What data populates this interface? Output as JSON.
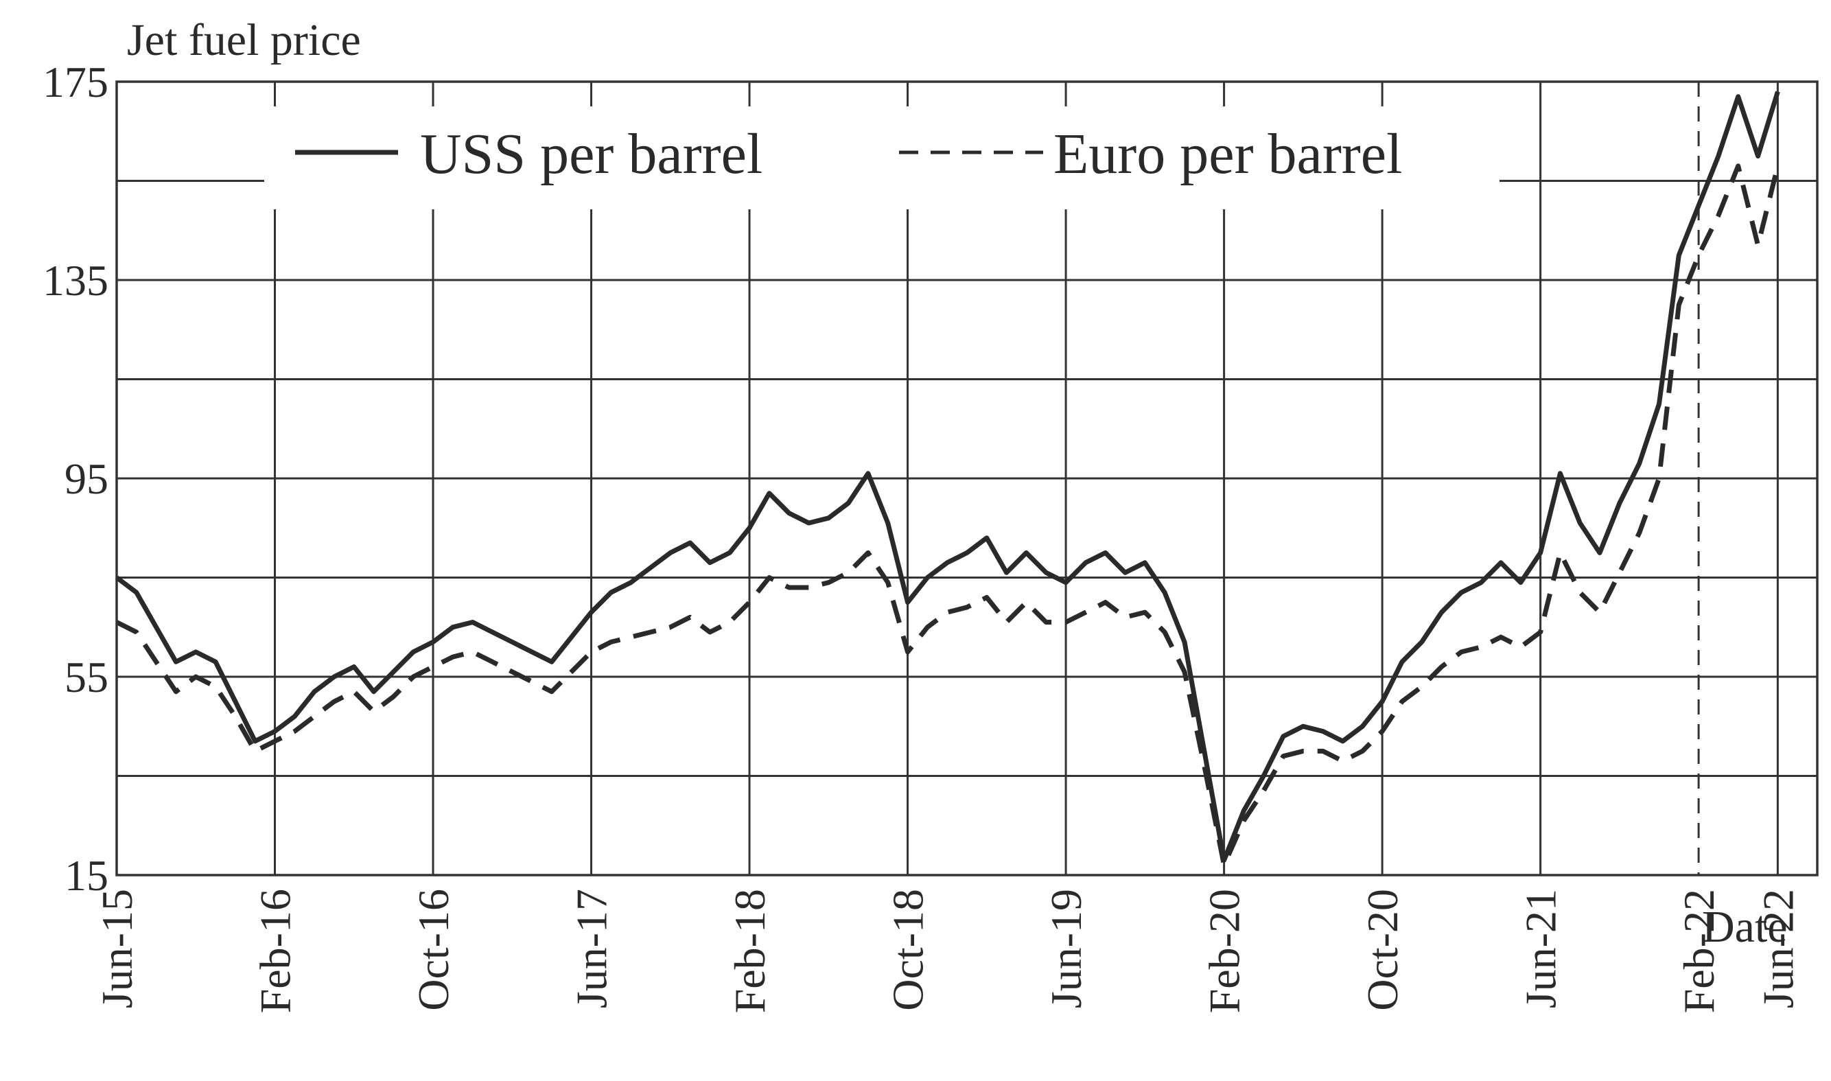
{
  "chart_data": {
    "type": "line",
    "title": "",
    "ylabel": "Jet fuel price",
    "xlabel": "Date",
    "ylim": [
      15,
      175
    ],
    "xlim": [
      "2015-06",
      "2022-08"
    ],
    "y_ticks": [
      15,
      55,
      95,
      135,
      175
    ],
    "y_gridlines": [
      15,
      35,
      55,
      75,
      95,
      115,
      135,
      155,
      175
    ],
    "x_ticks": [
      {
        "date": "2015-06",
        "label": "Jun-15"
      },
      {
        "date": "2016-02",
        "label": "Feb-16"
      },
      {
        "date": "2016-10",
        "label": "Oct-16"
      },
      {
        "date": "2017-06",
        "label": "Jun-17"
      },
      {
        "date": "2018-02",
        "label": "Feb-18"
      },
      {
        "date": "2018-10",
        "label": "Oct-18"
      },
      {
        "date": "2019-06",
        "label": "Jun-19"
      },
      {
        "date": "2020-02",
        "label": "Feb-20"
      },
      {
        "date": "2020-10",
        "label": "Oct-20"
      },
      {
        "date": "2021-06",
        "label": "Jun-21"
      },
      {
        "date": "2022-02",
        "label": "Feb-22"
      },
      {
        "date": "2022-06",
        "label": "Jun-22"
      }
    ],
    "grid": true,
    "legend_position": "top",
    "vertical_marker": {
      "date": "2022-02",
      "style": "dashed"
    },
    "series": [
      {
        "name": "USS per barrel",
        "style": "solid",
        "x": [
          "2015-06",
          "2015-07",
          "2015-08",
          "2015-09",
          "2015-10",
          "2015-11",
          "2015-12",
          "2016-01",
          "2016-02",
          "2016-03",
          "2016-04",
          "2016-05",
          "2016-06",
          "2016-07",
          "2016-08",
          "2016-09",
          "2016-10",
          "2016-11",
          "2016-12",
          "2017-01",
          "2017-02",
          "2017-03",
          "2017-04",
          "2017-05",
          "2017-06",
          "2017-07",
          "2017-08",
          "2017-09",
          "2017-10",
          "2017-11",
          "2017-12",
          "2018-01",
          "2018-02",
          "2018-03",
          "2018-04",
          "2018-05",
          "2018-06",
          "2018-07",
          "2018-08",
          "2018-09",
          "2018-10",
          "2018-11",
          "2018-12",
          "2019-01",
          "2019-02",
          "2019-03",
          "2019-04",
          "2019-05",
          "2019-06",
          "2019-07",
          "2019-08",
          "2019-09",
          "2019-10",
          "2019-11",
          "2019-12",
          "2020-01",
          "2020-02",
          "2020-03",
          "2020-04",
          "2020-05",
          "2020-06",
          "2020-07",
          "2020-08",
          "2020-09",
          "2020-10",
          "2020-11",
          "2020-12",
          "2021-01",
          "2021-02",
          "2021-03",
          "2021-04",
          "2021-05",
          "2021-06",
          "2021-07",
          "2021-08",
          "2021-09",
          "2021-10",
          "2021-11",
          "2021-12",
          "2022-01",
          "2022-02",
          "2022-03",
          "2022-04",
          "2022-05",
          "2022-06"
        ],
        "values": [
          75,
          72,
          65,
          58,
          60,
          58,
          50,
          42,
          44,
          47,
          52,
          55,
          57,
          52,
          56,
          60,
          62,
          65,
          66,
          64,
          62,
          60,
          58,
          63,
          68,
          72,
          74,
          77,
          80,
          82,
          78,
          80,
          85,
          92,
          88,
          86,
          87,
          90,
          96,
          86,
          70,
          75,
          78,
          80,
          83,
          76,
          80,
          76,
          74,
          78,
          80,
          76,
          78,
          72,
          62,
          40,
          18,
          28,
          35,
          43,
          45,
          44,
          42,
          45,
          50,
          58,
          62,
          68,
          72,
          74,
          78,
          74,
          80,
          96,
          86,
          80,
          90,
          98,
          110,
          140,
          150,
          160,
          172,
          160,
          173
        ],
        "_ignore": ""
      },
      {
        "name": "Euro per barrel",
        "style": "dashed",
        "x": [
          "2015-06",
          "2015-07",
          "2015-08",
          "2015-09",
          "2015-10",
          "2015-11",
          "2015-12",
          "2016-01",
          "2016-02",
          "2016-03",
          "2016-04",
          "2016-05",
          "2016-06",
          "2016-07",
          "2016-08",
          "2016-09",
          "2016-10",
          "2016-11",
          "2016-12",
          "2017-01",
          "2017-02",
          "2017-03",
          "2017-04",
          "2017-05",
          "2017-06",
          "2017-07",
          "2017-08",
          "2017-09",
          "2017-10",
          "2017-11",
          "2017-12",
          "2018-01",
          "2018-02",
          "2018-03",
          "2018-04",
          "2018-05",
          "2018-06",
          "2018-07",
          "2018-08",
          "2018-09",
          "2018-10",
          "2018-11",
          "2018-12",
          "2019-01",
          "2019-02",
          "2019-03",
          "2019-04",
          "2019-05",
          "2019-06",
          "2019-07",
          "2019-08",
          "2019-09",
          "2019-10",
          "2019-11",
          "2019-12",
          "2020-01",
          "2020-02",
          "2020-03",
          "2020-04",
          "2020-05",
          "2020-06",
          "2020-07",
          "2020-08",
          "2020-09",
          "2020-10",
          "2020-11",
          "2020-12",
          "2021-01",
          "2021-02",
          "2021-03",
          "2021-04",
          "2021-05",
          "2021-06",
          "2021-07",
          "2021-08",
          "2021-09",
          "2021-10",
          "2021-11",
          "2021-12",
          "2022-01",
          "2022-02",
          "2022-03",
          "2022-04",
          "2022-05",
          "2022-06"
        ],
        "values": [
          66,
          64,
          58,
          52,
          55,
          53,
          47,
          40,
          42,
          44,
          47,
          50,
          52,
          48,
          51,
          55,
          57,
          59,
          60,
          58,
          56,
          54,
          52,
          56,
          60,
          62,
          63,
          64,
          65,
          67,
          64,
          66,
          70,
          75,
          73,
          73,
          74,
          76,
          80,
          74,
          60,
          65,
          68,
          69,
          71,
          66,
          70,
          66,
          66,
          68,
          70,
          67,
          68,
          64,
          56,
          37,
          17,
          26,
          32,
          39,
          40,
          40,
          38,
          40,
          44,
          50,
          53,
          57,
          60,
          61,
          63,
          61,
          64,
          80,
          72,
          68,
          76,
          84,
          95,
          130,
          140,
          148,
          158,
          142,
          158
        ]
      }
    ]
  }
}
